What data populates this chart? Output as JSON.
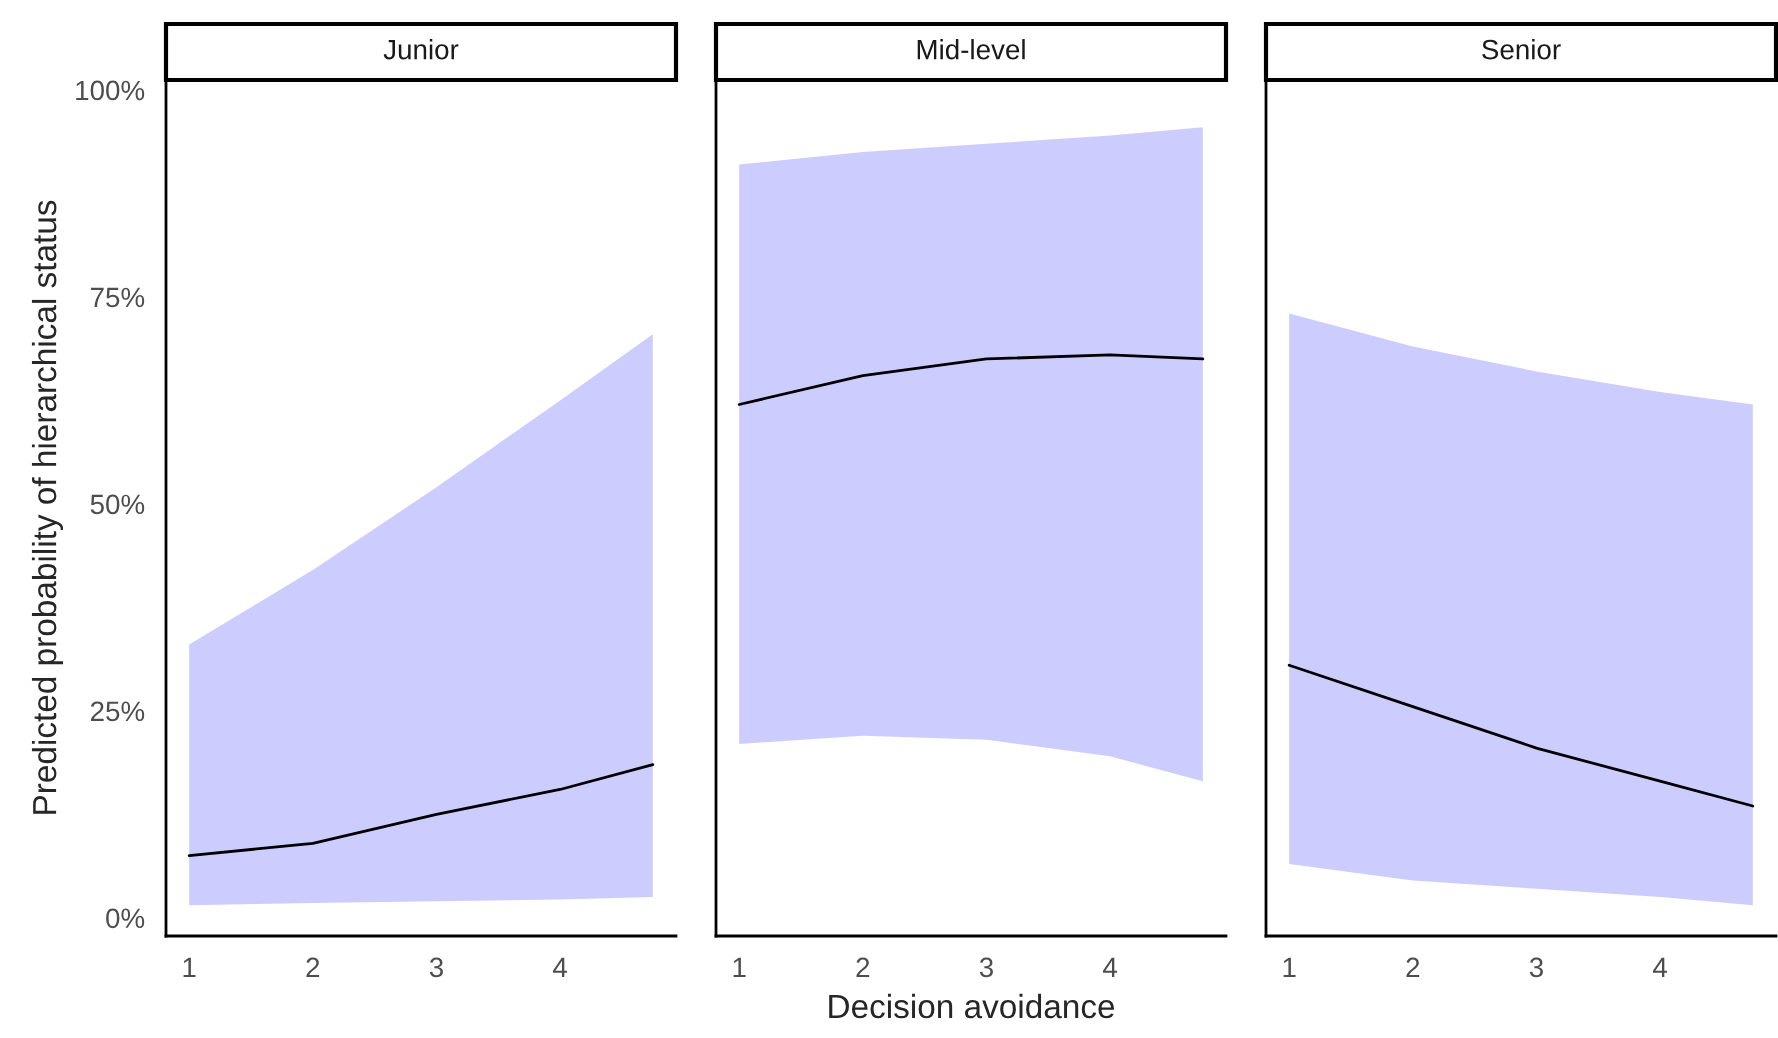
{
  "chart_data": [
    {
      "type": "line",
      "title": "Junior",
      "ylabel": "Predicted probability of hierarchical status",
      "xlim": [
        0.8125,
        4.9375
      ],
      "xticks": [
        1,
        2,
        3,
        4
      ],
      "ylim": [
        -2.2,
        101.2
      ],
      "yticks": [
        {
          "value": 0,
          "label": "0%"
        },
        {
          "value": 25,
          "label": "25%"
        },
        {
          "value": 50,
          "label": "50%"
        },
        {
          "value": 75,
          "label": "75%"
        },
        {
          "value": 100,
          "label": "100%"
        }
      ],
      "grid": false,
      "colors": [
        "#ccccff"
      ],
      "series": [
        {
          "color": "#000000",
          "x": [
            1,
            2,
            3,
            4,
            4.75
          ],
          "values": [
            7.5,
            9,
            12.5,
            15.5,
            18.5
          ],
          "lower": [
            1.5,
            1.8,
            2,
            2.2,
            2.5
          ],
          "upper": [
            33,
            42,
            52,
            62.5,
            70.5
          ]
        }
      ]
    },
    {
      "type": "line",
      "title": "Mid-level",
      "xlabel": "Decision avoidance",
      "xlim": [
        0.8125,
        4.9375
      ],
      "xticks": [
        1,
        2,
        3,
        4
      ],
      "ylim": [
        -2.2,
        101.2
      ],
      "yticks": [
        {
          "value": 0,
          "label": null
        },
        {
          "value": 25,
          "label": null
        },
        {
          "value": 50,
          "label": null
        },
        {
          "value": 75,
          "label": null
        },
        {
          "value": 100,
          "label": null
        }
      ],
      "tick_labels": "x",
      "grid": false,
      "colors": [
        "#ccccff"
      ],
      "series": [
        {
          "color": "#000000",
          "x": [
            1,
            2,
            3,
            4,
            4.75
          ],
          "values": [
            62,
            65.5,
            67.5,
            68,
            67.5
          ],
          "lower": [
            21,
            22,
            21.5,
            19.5,
            16.5
          ],
          "upper": [
            91,
            92.5,
            93.5,
            94.5,
            95.5
          ]
        }
      ]
    },
    {
      "type": "line",
      "title": "Senior",
      "xlim": [
        0.8125,
        4.9375
      ],
      "xticks": [
        1,
        2,
        3,
        4
      ],
      "ylim": [
        -2.2,
        101.2
      ],
      "yticks": [
        {
          "value": 0,
          "label": null
        },
        {
          "value": 25,
          "label": null
        },
        {
          "value": 50,
          "label": null
        },
        {
          "value": 75,
          "label": null
        },
        {
          "value": 100,
          "label": null
        }
      ],
      "tick_labels": "x",
      "grid": false,
      "colors": [
        "#ccccff"
      ],
      "series": [
        {
          "color": "#000000",
          "x": [
            1,
            2,
            3,
            4,
            4.75
          ],
          "values": [
            30.5,
            25.5,
            20.5,
            16.5,
            13.5
          ],
          "lower": [
            6.5,
            4.5,
            3.5,
            2.5,
            1.5
          ],
          "upper": [
            73,
            69,
            66,
            63.5,
            62
          ]
        }
      ]
    }
  ]
}
